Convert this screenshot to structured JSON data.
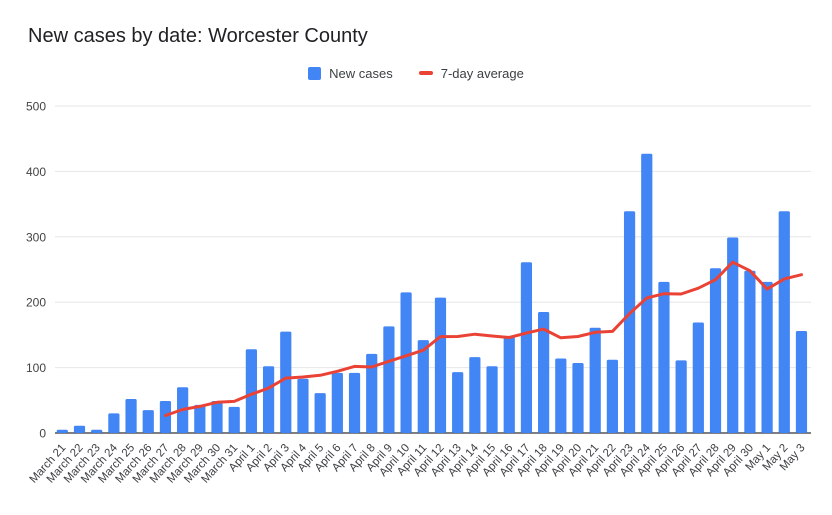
{
  "title": "New cases by date: Worcester County",
  "legend": [
    {
      "label": "New cases",
      "marker": "square",
      "color": "#4285f4"
    },
    {
      "label": "7-day average",
      "marker": "dash",
      "color": "#ea4335"
    }
  ],
  "chart_data": {
    "type": "bar",
    "title": "New cases by date: Worcester County",
    "categories": [
      "March 21",
      "March 22",
      "March 23",
      "March 24",
      "March 25",
      "March 26",
      "March 27",
      "March 28",
      "March 29",
      "March 30",
      "March 31",
      "April 1",
      "April 2",
      "April 3",
      "April 4",
      "April 5",
      "April 6",
      "April 7",
      "April 8",
      "April 9",
      "April 10",
      "April 11",
      "April 12",
      "April 13",
      "April 14",
      "April 15",
      "April 16",
      "April 17",
      "April 18",
      "April 19",
      "April 20",
      "April 21",
      "April 22",
      "April 23",
      "April 24",
      "April 25",
      "April 26",
      "April 27",
      "April 28",
      "April 29",
      "April 30",
      "May 1",
      "May 2",
      "May 3"
    ],
    "series": [
      {
        "name": "New cases",
        "type": "bar",
        "color": "#4285f4",
        "values": [
          5,
          11,
          5,
          30,
          52,
          35,
          49,
          70,
          43,
          49,
          40,
          128,
          102,
          155,
          83,
          61,
          92,
          92,
          121,
          163,
          215,
          142,
          207,
          93,
          116,
          102,
          148,
          261,
          185,
          114,
          107,
          161,
          112,
          339,
          427,
          231,
          111,
          169,
          252,
          299,
          248,
          231,
          339,
          156
        ]
      },
      {
        "name": "7-day average",
        "type": "line",
        "color": "#ea4335",
        "values": [
          null,
          null,
          null,
          null,
          null,
          null,
          26.7,
          36.0,
          40.6,
          46.9,
          48.3,
          59.1,
          68.7,
          83.9,
          85.7,
          88.3,
          94.4,
          101.9,
          100.9,
          109.6,
          118.1,
          126.6,
          147.4,
          147.6,
          151.0,
          148.3,
          146.1,
          152.7,
          158.9,
          145.6,
          147.6,
          154.0,
          155.4,
          182.7,
          206.4,
          213.0,
          212.6,
          221.4,
          234.4,
          261.1,
          248.1,
          220.1,
          235.6,
          242.0
        ]
      }
    ],
    "xlabel": "",
    "ylabel": "",
    "ylim": [
      0,
      500
    ],
    "yticks": [
      0,
      100,
      200,
      300,
      400,
      500
    ],
    "grid": true,
    "legend_position": "top"
  }
}
